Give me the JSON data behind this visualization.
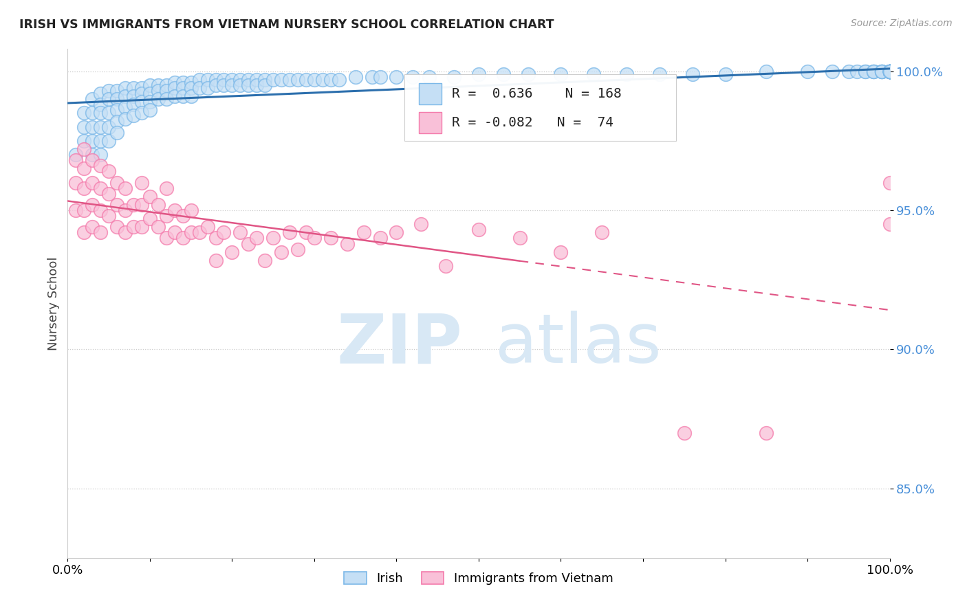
{
  "title": "IRISH VS IMMIGRANTS FROM VIETNAM NURSERY SCHOOL CORRELATION CHART",
  "source": "Source: ZipAtlas.com",
  "ylabel": "Nursery School",
  "xlim": [
    0.0,
    1.0
  ],
  "ylim": [
    0.825,
    1.008
  ],
  "yticks": [
    0.85,
    0.9,
    0.95,
    1.0
  ],
  "ytick_labels": [
    "85.0%",
    "90.0%",
    "95.0%",
    "100.0%"
  ],
  "blue_color": "#7bb8e8",
  "blue_fill_color": "#c5dff5",
  "pink_color": "#f47aab",
  "pink_fill_color": "#f9c0d8",
  "blue_line_color": "#2c6fad",
  "pink_line_color": "#e05585",
  "legend_R_blue": "0.636",
  "legend_N_blue": "168",
  "legend_R_pink": "-0.082",
  "legend_N_pink": "74",
  "background_color": "#ffffff",
  "blue_scatter_x": [
    0.01,
    0.02,
    0.02,
    0.02,
    0.03,
    0.03,
    0.03,
    0.03,
    0.03,
    0.04,
    0.04,
    0.04,
    0.04,
    0.04,
    0.04,
    0.05,
    0.05,
    0.05,
    0.05,
    0.05,
    0.06,
    0.06,
    0.06,
    0.06,
    0.06,
    0.07,
    0.07,
    0.07,
    0.07,
    0.08,
    0.08,
    0.08,
    0.08,
    0.09,
    0.09,
    0.09,
    0.09,
    0.1,
    0.1,
    0.1,
    0.1,
    0.11,
    0.11,
    0.11,
    0.12,
    0.12,
    0.12,
    0.13,
    0.13,
    0.13,
    0.14,
    0.14,
    0.14,
    0.15,
    0.15,
    0.15,
    0.16,
    0.16,
    0.17,
    0.17,
    0.18,
    0.18,
    0.19,
    0.19,
    0.2,
    0.2,
    0.21,
    0.21,
    0.22,
    0.22,
    0.23,
    0.23,
    0.24,
    0.24,
    0.25,
    0.26,
    0.27,
    0.28,
    0.29,
    0.3,
    0.31,
    0.32,
    0.33,
    0.35,
    0.37,
    0.38,
    0.4,
    0.42,
    0.44,
    0.47,
    0.5,
    0.53,
    0.56,
    0.6,
    0.64,
    0.68,
    0.72,
    0.76,
    0.8,
    0.85,
    0.9,
    0.93,
    0.95,
    0.96,
    0.97,
    0.97,
    0.98,
    0.98,
    0.98,
    0.99,
    0.99,
    0.99,
    0.99,
    1.0,
    1.0,
    1.0,
    1.0,
    1.0,
    1.0,
    1.0,
    1.0,
    1.0,
    1.0,
    1.0,
    1.0,
    1.0,
    1.0,
    1.0,
    1.0,
    1.0,
    1.0,
    1.0,
    1.0,
    1.0,
    1.0,
    1.0,
    1.0,
    1.0,
    1.0,
    1.0,
    1.0,
    1.0,
    1.0,
    1.0,
    1.0,
    1.0,
    1.0,
    1.0,
    1.0,
    1.0,
    1.0,
    1.0,
    1.0,
    1.0,
    1.0,
    1.0,
    1.0,
    1.0,
    1.0,
    1.0,
    1.0,
    1.0,
    1.0,
    1.0,
    1.0
  ],
  "blue_scatter_y": [
    0.97,
    0.985,
    0.98,
    0.975,
    0.99,
    0.985,
    0.98,
    0.975,
    0.97,
    0.992,
    0.988,
    0.985,
    0.98,
    0.975,
    0.97,
    0.993,
    0.99,
    0.985,
    0.98,
    0.975,
    0.993,
    0.99,
    0.986,
    0.982,
    0.978,
    0.994,
    0.991,
    0.987,
    0.983,
    0.994,
    0.991,
    0.988,
    0.984,
    0.994,
    0.992,
    0.989,
    0.985,
    0.995,
    0.992,
    0.989,
    0.986,
    0.995,
    0.993,
    0.99,
    0.995,
    0.993,
    0.99,
    0.996,
    0.994,
    0.991,
    0.996,
    0.994,
    0.991,
    0.996,
    0.994,
    0.991,
    0.997,
    0.994,
    0.997,
    0.994,
    0.997,
    0.995,
    0.997,
    0.995,
    0.997,
    0.995,
    0.997,
    0.995,
    0.997,
    0.995,
    0.997,
    0.995,
    0.997,
    0.995,
    0.997,
    0.997,
    0.997,
    0.997,
    0.997,
    0.997,
    0.997,
    0.997,
    0.997,
    0.998,
    0.998,
    0.998,
    0.998,
    0.998,
    0.998,
    0.998,
    0.999,
    0.999,
    0.999,
    0.999,
    0.999,
    0.999,
    0.999,
    0.999,
    0.999,
    1.0,
    1.0,
    1.0,
    1.0,
    1.0,
    1.0,
    1.0,
    1.0,
    1.0,
    1.0,
    1.0,
    1.0,
    1.0,
    1.0,
    1.0,
    1.0,
    1.0,
    1.0,
    1.0,
    1.0,
    1.0,
    1.0,
    1.0,
    1.0,
    1.0,
    1.0,
    1.0,
    1.0,
    1.0,
    1.0,
    1.0,
    1.0,
    1.0,
    1.0,
    1.0,
    1.0,
    1.0,
    1.0,
    1.0,
    1.0,
    1.0,
    1.0,
    1.0,
    1.0,
    1.0,
    1.0,
    1.0,
    1.0,
    1.0,
    1.0,
    1.0,
    1.0,
    1.0,
    1.0,
    1.0,
    1.0,
    1.0,
    1.0,
    1.0,
    1.0,
    1.0,
    1.0,
    1.0,
    1.0,
    1.0,
    1.0
  ],
  "pink_scatter_x": [
    0.01,
    0.01,
    0.01,
    0.02,
    0.02,
    0.02,
    0.02,
    0.02,
    0.03,
    0.03,
    0.03,
    0.03,
    0.04,
    0.04,
    0.04,
    0.04,
    0.05,
    0.05,
    0.05,
    0.06,
    0.06,
    0.06,
    0.07,
    0.07,
    0.07,
    0.08,
    0.08,
    0.09,
    0.09,
    0.09,
    0.1,
    0.1,
    0.11,
    0.11,
    0.12,
    0.12,
    0.12,
    0.13,
    0.13,
    0.14,
    0.14,
    0.15,
    0.15,
    0.16,
    0.17,
    0.18,
    0.18,
    0.19,
    0.2,
    0.21,
    0.22,
    0.23,
    0.24,
    0.25,
    0.26,
    0.27,
    0.28,
    0.29,
    0.3,
    0.32,
    0.34,
    0.36,
    0.38,
    0.4,
    0.43,
    0.46,
    0.5,
    0.55,
    0.6,
    0.65,
    0.75,
    0.85,
    1.0,
    1.0
  ],
  "pink_scatter_y": [
    0.968,
    0.96,
    0.95,
    0.972,
    0.965,
    0.958,
    0.95,
    0.942,
    0.968,
    0.96,
    0.952,
    0.944,
    0.966,
    0.958,
    0.95,
    0.942,
    0.964,
    0.956,
    0.948,
    0.96,
    0.952,
    0.944,
    0.958,
    0.95,
    0.942,
    0.952,
    0.944,
    0.96,
    0.952,
    0.944,
    0.955,
    0.947,
    0.952,
    0.944,
    0.958,
    0.948,
    0.94,
    0.95,
    0.942,
    0.948,
    0.94,
    0.95,
    0.942,
    0.942,
    0.944,
    0.94,
    0.932,
    0.942,
    0.935,
    0.942,
    0.938,
    0.94,
    0.932,
    0.94,
    0.935,
    0.942,
    0.936,
    0.942,
    0.94,
    0.94,
    0.938,
    0.942,
    0.94,
    0.942,
    0.945,
    0.93,
    0.943,
    0.94,
    0.935,
    0.942,
    0.87,
    0.87,
    0.96,
    0.945
  ]
}
